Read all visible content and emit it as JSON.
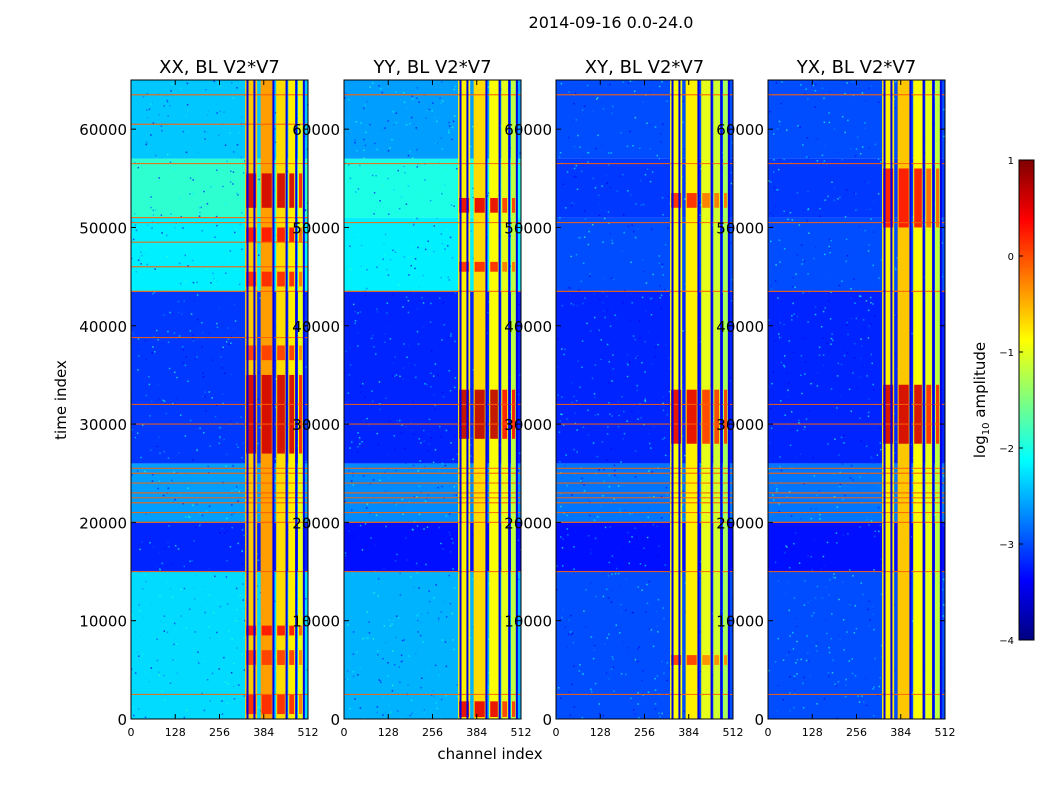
{
  "chart_data": {
    "type": "heatmap",
    "suptitle": "2014-09-16 0.0-24.0",
    "xlabel": "channel index",
    "ylabel": "time index",
    "xlim": [
      0,
      512
    ],
    "ylim": [
      0,
      65000
    ],
    "xticks": [
      0,
      128,
      256,
      384,
      512
    ],
    "xtick_labels": [
      "0",
      "128",
      "256",
      "384",
      "512"
    ],
    "yticks": [
      0,
      10000,
      20000,
      30000,
      40000,
      50000,
      60000
    ],
    "ytick_labels": [
      "0",
      "10000",
      "20000",
      "30000",
      "40000",
      "50000",
      "60000"
    ],
    "colormap": "jet",
    "colorbar": {
      "label_main": "log",
      "label_sub": "10",
      "label_rest": " amplitude",
      "range": [
        -4,
        1
      ],
      "ticks": [
        1,
        0,
        -1,
        -2,
        -3,
        -4
      ],
      "tick_labels": [
        "1",
        "0",
        "−1",
        "−2",
        "−3",
        "−4"
      ],
      "colors": [
        "#00007f",
        "#0000ff",
        "#007fff",
        "#00ffff",
        "#7fff7f",
        "#ffff00",
        "#ff7f00",
        "#ff0000",
        "#7f0000"
      ]
    },
    "panels": [
      {
        "title": "XX, BL V2*V7",
        "background_bands": [
          {
            "y": [
              0,
              15000
            ],
            "log_amp": -2.3
          },
          {
            "y": [
              15000,
              20000
            ],
            "log_amp": -3.2
          },
          {
            "y": [
              20000,
              26000
            ],
            "log_amp": -2.6
          },
          {
            "y": [
              26000,
              43500
            ],
            "log_amp": -3.1
          },
          {
            "y": [
              43500,
              51000
            ],
            "log_amp": -2.2
          },
          {
            "y": [
              51000,
              57000
            ],
            "log_amp": -1.9
          },
          {
            "y": [
              57000,
              65000
            ],
            "log_amp": -2.4
          }
        ],
        "signal_channels": [
          {
            "x": [
              330,
              365
            ],
            "log_amp": -0.6
          },
          {
            "x": [
              375,
              410
            ],
            "log_amp": -0.4
          },
          {
            "x": [
              420,
              448
            ],
            "log_amp": -0.7
          },
          {
            "x": [
              455,
              475
            ],
            "log_amp": -0.8
          },
          {
            "x": [
              483,
              498
            ],
            "log_amp": -1.0
          }
        ],
        "hot_rows": [
          {
            "y": [
              500,
              2500
            ],
            "log_amp": 0.2
          },
          {
            "y": [
              5500,
              7000
            ],
            "log_amp": 0.1
          },
          {
            "y": [
              8500,
              9500
            ],
            "log_amp": 0.3
          },
          {
            "y": [
              27000,
              35000
            ],
            "log_amp": 0.6
          },
          {
            "y": [
              36500,
              38000
            ],
            "log_amp": 0.1
          },
          {
            "y": [
              44000,
              45500
            ],
            "log_amp": 0.2
          },
          {
            "y": [
              48500,
              50000
            ],
            "log_amp": 0.3
          },
          {
            "y": [
              52000,
              55500
            ],
            "log_amp": 0.6
          }
        ],
        "rfi_rows": [
          2500,
          15000,
          20000,
          21000,
          22000,
          22500,
          23000,
          24000,
          25000,
          25500,
          30000,
          32000,
          38800,
          43500,
          46000,
          48500,
          50500,
          51000,
          56500,
          60500,
          63500
        ],
        "dark_cols": [
          337,
          357,
          412,
          450,
          478,
          500
        ]
      },
      {
        "title": "YY, BL V2*V7",
        "background_bands": [
          {
            "y": [
              0,
              15000
            ],
            "log_amp": -2.5
          },
          {
            "y": [
              15000,
              20000
            ],
            "log_amp": -3.3
          },
          {
            "y": [
              20000,
              26000
            ],
            "log_amp": -2.7
          },
          {
            "y": [
              26000,
              43500
            ],
            "log_amp": -3.2
          },
          {
            "y": [
              43500,
              51000
            ],
            "log_amp": -2.2
          },
          {
            "y": [
              51000,
              57000
            ],
            "log_amp": -2.0
          },
          {
            "y": [
              57000,
              65000
            ],
            "log_amp": -2.6
          }
        ],
        "signal_channels": [
          {
            "x": [
              330,
              365
            ],
            "log_amp": -0.8
          },
          {
            "x": [
              375,
              410
            ],
            "log_amp": -0.7
          },
          {
            "x": [
              420,
              448
            ],
            "log_amp": -0.9
          },
          {
            "x": [
              455,
              475
            ],
            "log_amp": -1.0
          },
          {
            "x": [
              483,
              498
            ],
            "log_amp": -1.2
          }
        ],
        "hot_rows": [
          {
            "y": [
              200,
              1800
            ],
            "log_amp": 0.5
          },
          {
            "y": [
              28500,
              33500
            ],
            "log_amp": 0.7
          },
          {
            "y": [
              45500,
              46500
            ],
            "log_amp": 0.2
          },
          {
            "y": [
              51500,
              53000
            ],
            "log_amp": 0.5
          }
        ],
        "rfi_rows": [
          2500,
          15000,
          20000,
          21000,
          22000,
          22500,
          23000,
          24000,
          25000,
          25500,
          30000,
          32000,
          43500,
          50500,
          56500,
          63500
        ],
        "dark_cols": [
          337,
          357,
          412,
          450,
          478,
          500
        ]
      },
      {
        "title": "XY, BL V2*V7",
        "background_bands": [
          {
            "y": [
              0,
              15000
            ],
            "log_amp": -3.0
          },
          {
            "y": [
              15000,
              20000
            ],
            "log_amp": -3.3
          },
          {
            "y": [
              20000,
              26000
            ],
            "log_amp": -2.8
          },
          {
            "y": [
              26000,
              43500
            ],
            "log_amp": -3.2
          },
          {
            "y": [
              43500,
              51000
            ],
            "log_amp": -3.0
          },
          {
            "y": [
              51000,
              57000
            ],
            "log_amp": -3.1
          },
          {
            "y": [
              57000,
              65000
            ],
            "log_amp": -3.0
          }
        ],
        "signal_channels": [
          {
            "x": [
              330,
              365
            ],
            "log_amp": -0.9
          },
          {
            "x": [
              375,
              410
            ],
            "log_amp": -0.8
          },
          {
            "x": [
              420,
              448
            ],
            "log_amp": -1.0
          },
          {
            "x": [
              455,
              475
            ],
            "log_amp": -1.1
          },
          {
            "x": [
              483,
              498
            ],
            "log_amp": -1.3
          }
        ],
        "hot_rows": [
          {
            "y": [
              5500,
              6500
            ],
            "log_amp": 0.1
          },
          {
            "y": [
              28000,
              33500
            ],
            "log_amp": 0.5
          },
          {
            "y": [
              52000,
              53500
            ],
            "log_amp": 0.2
          }
        ],
        "rfi_rows": [
          2500,
          15000,
          20000,
          21000,
          22000,
          22500,
          23000,
          24000,
          25000,
          25500,
          30000,
          32000,
          43500,
          50500,
          56500,
          63500
        ],
        "dark_cols": [
          337,
          357,
          412,
          450,
          478,
          500
        ]
      },
      {
        "title": "YX, BL V2*V7",
        "background_bands": [
          {
            "y": [
              0,
              15000
            ],
            "log_amp": -3.0
          },
          {
            "y": [
              15000,
              20000
            ],
            "log_amp": -3.3
          },
          {
            "y": [
              20000,
              26000
            ],
            "log_amp": -2.8
          },
          {
            "y": [
              26000,
              43500
            ],
            "log_amp": -3.2
          },
          {
            "y": [
              43500,
              51000
            ],
            "log_amp": -3.0
          },
          {
            "y": [
              51000,
              57000
            ],
            "log_amp": -3.1
          },
          {
            "y": [
              57000,
              65000
            ],
            "log_amp": -3.0
          }
        ],
        "signal_channels": [
          {
            "x": [
              330,
              365
            ],
            "log_amp": -0.8
          },
          {
            "x": [
              375,
              410
            ],
            "log_amp": -0.6
          },
          {
            "x": [
              420,
              448
            ],
            "log_amp": -0.9
          },
          {
            "x": [
              455,
              475
            ],
            "log_amp": -1.0
          },
          {
            "x": [
              483,
              498
            ],
            "log_amp": -1.2
          }
        ],
        "hot_rows": [
          {
            "y": [
              28000,
              34000
            ],
            "log_amp": 0.6
          },
          {
            "y": [
              50000,
              56000
            ],
            "log_amp": 0.3
          }
        ],
        "rfi_rows": [
          2500,
          15000,
          20000,
          21000,
          22000,
          22500,
          23000,
          24000,
          25000,
          25500,
          30000,
          32000,
          43500,
          50500,
          56500,
          63500
        ],
        "dark_cols": [
          337,
          357,
          412,
          450,
          478,
          500
        ]
      }
    ]
  }
}
